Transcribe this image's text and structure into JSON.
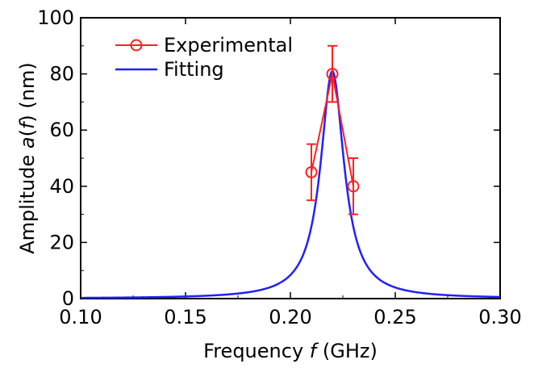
{
  "chart_data": {
    "type": "line",
    "title": "",
    "xlabel": "Frequency",
    "xlabel_var": "f",
    "xlabel_unit": "(GHz)",
    "ylabel": "Amplitude",
    "ylabel_func": "a",
    "ylabel_var": "f",
    "ylabel_unit": "(nm)",
    "xlim": [
      0.1,
      0.3
    ],
    "ylim": [
      0,
      100
    ],
    "xticks": [
      "0.10",
      "0.15",
      "0.20",
      "0.25",
      "0.30"
    ],
    "yticks": [
      "0",
      "20",
      "40",
      "60",
      "80",
      "100"
    ],
    "grid": false,
    "legend_position": "top-left",
    "series": [
      {
        "name": "Experimental",
        "kind": "scatter-errorbar",
        "color": "#ff2020",
        "marker": "open-circle",
        "x": [
          0.21,
          0.22,
          0.23
        ],
        "y": [
          45,
          80,
          40
        ],
        "yerr": [
          10,
          10,
          10
        ]
      },
      {
        "name": "Fitting",
        "kind": "lorentzian-fit",
        "color": "#2020ff",
        "peak_x": 0.22,
        "peak_y": 81,
        "half_width": 0.0068
      }
    ]
  }
}
